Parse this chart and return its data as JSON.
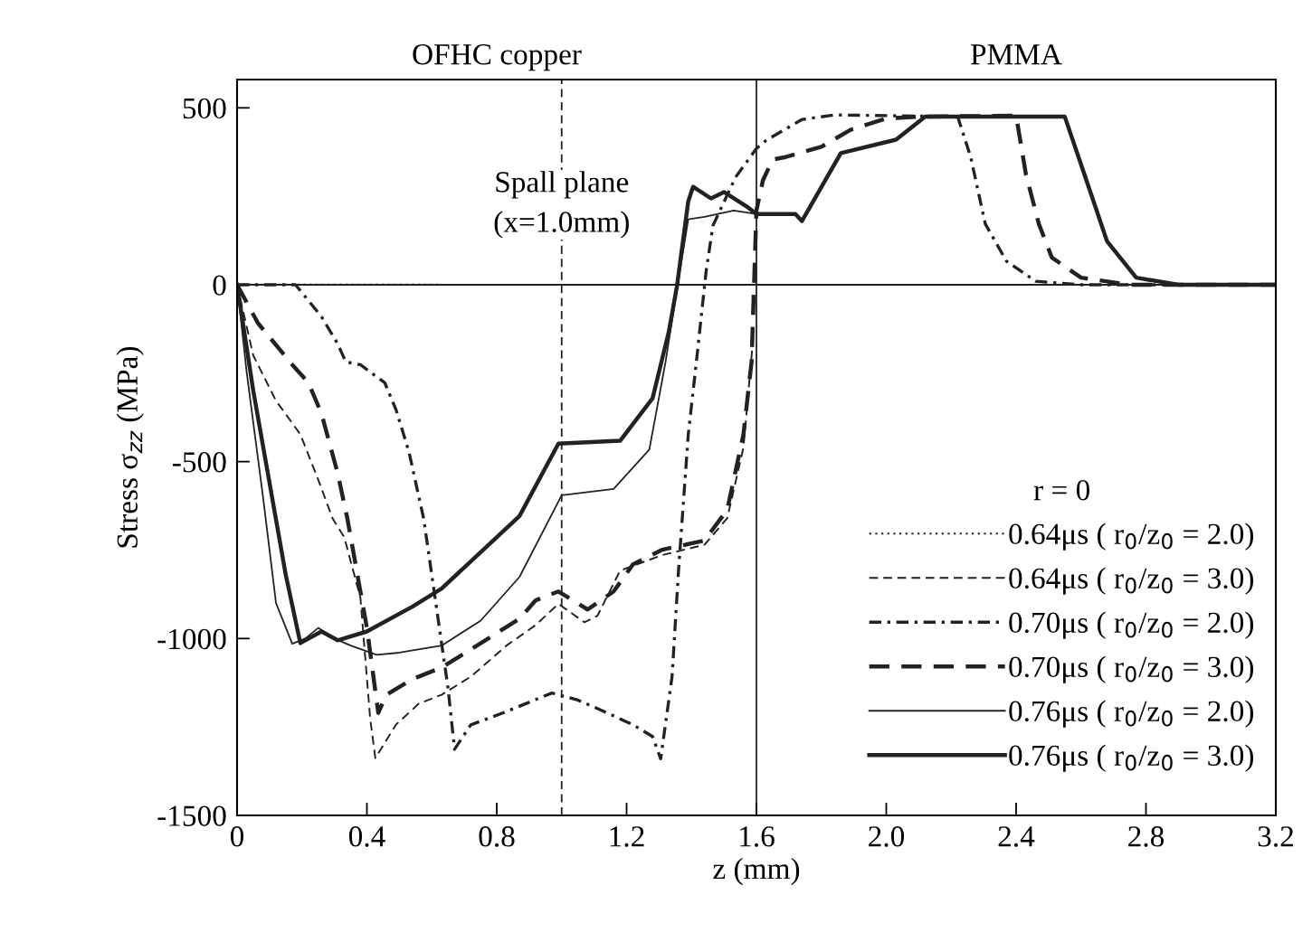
{
  "chart_data": {
    "type": "line",
    "xlabel": "z (mm)",
    "ylabel": "Stress σ$_{zz}$ (MPa)",
    "legend_title": "r = 0",
    "annotations": [
      "OFHC copper",
      "PMMA"
    ],
    "xlim": [
      0,
      3.2
    ],
    "xticks": [
      0,
      0.4,
      0.8,
      1.2,
      1.6,
      {
        "value": 2,
        "label": "2.0"
      },
      2.4,
      2.8,
      3.2
    ],
    "ylim": [
      -1500,
      580
    ],
    "yticks": [
      -1500,
      -1000,
      -500,
      0,
      500
    ],
    "grid": false,
    "legend": "bottom right",
    "marker": "none",
    "ref_lines": [
      {
        "axis": "y",
        "value": 0,
        "label": null,
        "color": "#222222",
        "line_style": "solid"
      },
      {
        "axis": "x",
        "value": 1.6,
        "label": null,
        "color": "#222222",
        "line_style": "solid"
      },
      {
        "axis": "x",
        "value": 1.0,
        "label": "Spall plane\n(x=1.0mm)",
        "color": "#222222",
        "line_style": "dashed"
      }
    ],
    "series": [
      {
        "name": "0.64μs ( r$_{0}$/z$_{0}$ = 2.0)",
        "color": "#222222",
        "line_style": "dotted",
        "x": [
          0,
          0.1,
          0.2,
          0.3,
          0.4,
          0.5,
          0.63
        ],
        "values": [
          0,
          0,
          0,
          0,
          0,
          0,
          0
        ]
      },
      {
        "name": "0.64μs ( r$_{0}$/z$_{0}$ = 3.0)",
        "color": "#222222",
        "line_style": "dashed",
        "x": [
          0,
          0.05,
          0.12,
          0.195,
          0.25,
          0.295,
          0.33,
          0.38,
          0.41,
          0.426,
          0.49,
          0.56,
          0.63,
          0.72,
          0.83,
          0.92,
          0.99,
          1.07,
          1.11,
          1.18,
          1.31,
          1.44,
          1.51,
          1.56,
          1.59
        ],
        "values": [
          0,
          -200,
          -328,
          -423,
          -551,
          -662,
          -713,
          -885,
          -1226,
          -1338,
          -1243,
          -1184,
          -1159,
          -1108,
          -1020,
          -962,
          -902,
          -954,
          -936,
          -808,
          -764,
          -735,
          -660,
          -460,
          -150
        ]
      },
      {
        "name": "0.70μs ( r$_{0}$/z$_{0}$ = 2.0)",
        "color": "#222222",
        "line_style": "dashdot",
        "x": [
          0,
          0.1,
          0.18,
          0.26,
          0.31,
          0.335,
          0.38,
          0.455,
          0.49,
          0.53,
          0.575,
          0.61,
          0.65,
          0.67,
          0.72,
          0.82,
          0.97,
          1.05,
          1.14,
          1.22,
          1.28,
          1.305,
          1.34,
          1.36,
          1.39,
          1.415,
          1.445,
          1.466,
          1.535,
          1.6,
          1.63,
          1.74,
          1.84,
          2.0,
          2.22,
          2.26,
          2.305,
          2.37,
          2.46,
          2.6,
          3.2
        ],
        "values": [
          0,
          0,
          0,
          -90,
          -167,
          -218,
          -226,
          -277,
          -354,
          -474,
          -662,
          -885,
          -1141,
          -1313,
          -1244,
          -1210,
          -1154,
          -1174,
          -1210,
          -1244,
          -1277,
          -1340,
          -1108,
          -808,
          -423,
          -218,
          38,
          167,
          303,
          385,
          408,
          467,
          480,
          478,
          475,
          361,
          172,
          67,
          10,
          0,
          0
        ]
      },
      {
        "name": "0.70μs ( r$_{0}$/z$_{0}$ = 3.0)",
        "color": "#222222",
        "line_style": "dashed",
        "x": [
          0,
          0.064,
          0.17,
          0.22,
          0.26,
          0.31,
          0.34,
          0.35,
          0.4,
          0.435,
          0.46,
          0.54,
          0.63,
          0.72,
          0.87,
          0.92,
          0.99,
          1.08,
          1.16,
          1.22,
          1.31,
          1.44,
          1.51,
          1.56,
          1.585,
          1.6,
          1.62,
          1.65,
          1.69,
          1.8,
          1.89,
          2.0,
          2.1,
          2.4,
          2.43,
          2.47,
          2.51,
          2.6,
          2.75,
          3.2
        ],
        "values": [
          0,
          -108,
          -226,
          -277,
          -364,
          -533,
          -662,
          -713,
          -970,
          -1210,
          -1159,
          -1115,
          -1082,
          -1031,
          -944,
          -892,
          -867,
          -918,
          -867,
          -790,
          -749,
          -723,
          -636,
          -423,
          -218,
          210,
          295,
          354,
          361,
          390,
          438,
          470,
          475,
          478,
          313,
          172,
          77,
          20,
          0,
          0
        ]
      },
      {
        "name": "0.76μs ( r$_{0}$/z$_{0}$ = 2.0)",
        "color": "#222222",
        "line_style": "solid",
        "x": [
          0,
          0.03,
          0.08,
          0.12,
          0.17,
          0.21,
          0.25,
          0.3,
          0.35,
          0.43,
          0.5,
          0.63,
          0.75,
          0.87,
          1.0,
          1.16,
          1.27,
          1.32,
          1.355,
          1.39,
          1.44,
          1.53,
          1.6
        ],
        "values": [
          0,
          -250,
          -600,
          -900,
          -1015,
          -1000,
          -970,
          -1000,
          -1020,
          -1046,
          -1040,
          -1020,
          -950,
          -826,
          -595,
          -577,
          -466,
          -218,
          -13,
          185,
          192,
          210,
          200
        ]
      },
      {
        "name": "0.76μs ( r$_{0}$/z$_{0}$ = 3.0)",
        "color": "#222222",
        "line_style": "solid",
        "x": [
          0,
          0.05,
          0.1,
          0.15,
          0.195,
          0.26,
          0.31,
          0.4,
          0.54,
          0.63,
          0.87,
          0.99,
          1.18,
          1.28,
          1.33,
          1.355,
          1.39,
          1.405,
          1.46,
          1.5,
          1.575,
          1.6,
          1.72,
          1.74,
          1.86,
          2.03,
          2.12,
          2.55,
          2.61,
          2.68,
          2.77,
          2.9,
          3.2
        ],
        "values": [
          0,
          -300,
          -560,
          -820,
          -1013,
          -980,
          -1005,
          -980,
          -910,
          -859,
          -654,
          -449,
          -441,
          -321,
          -133,
          -5,
          236,
          277,
          244,
          262,
          218,
          200,
          200,
          180,
          372,
          410,
          475,
          475,
          313,
          123,
          20,
          0,
          0
        ]
      }
    ]
  }
}
